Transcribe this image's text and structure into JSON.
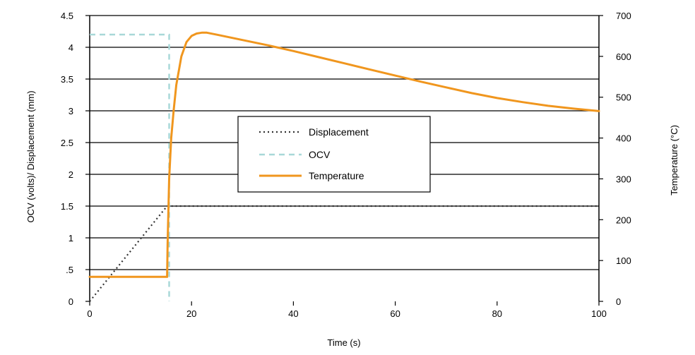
{
  "chart_data": {
    "type": "line",
    "xlabel": "Time (s)",
    "ylabel_left": "OCV (volts)/ Displacement (mm)",
    "ylabel_right": "Temperature (°C)",
    "xlim": [
      0,
      100
    ],
    "ylim_left": [
      0,
      4.5
    ],
    "ylim_right": [
      0,
      700
    ],
    "x_ticks": [
      0,
      20,
      40,
      60,
      80,
      100
    ],
    "x_tick_labels": [
      "0",
      "20",
      "40",
      "60",
      "80",
      "100"
    ],
    "y_left_ticks": [
      0,
      0.5,
      1,
      1.5,
      2,
      2.5,
      3,
      3.5,
      4,
      4.5
    ],
    "y_left_tick_labels": [
      "0",
      ".5",
      "1",
      "1.5",
      "2",
      "2.5",
      "3",
      "3.5",
      "4",
      "4.5"
    ],
    "y_right_ticks": [
      0,
      100,
      200,
      300,
      400,
      500,
      600,
      700
    ],
    "y_right_tick_labels": [
      "0",
      "100",
      "200",
      "300",
      "400",
      "500",
      "600",
      "700"
    ],
    "grid": true,
    "legend_position": "center",
    "series": [
      {
        "name": "Displacement",
        "axis": "left",
        "style": "dotted",
        "color": "#333333",
        "points": [
          [
            0,
            0
          ],
          [
            15.2,
            1.5
          ],
          [
            100,
            1.5
          ]
        ]
      },
      {
        "name": "OCV",
        "axis": "left",
        "style": "dashed",
        "color": "#a8d8d8",
        "points": [
          [
            0,
            4.2
          ],
          [
            15.6,
            4.2
          ],
          [
            15.6,
            0
          ]
        ]
      },
      {
        "name": "Temperature",
        "axis": "right",
        "style": "solid",
        "color": "#f0961e",
        "points": [
          [
            0,
            60
          ],
          [
            15.2,
            60
          ],
          [
            15.3,
            140
          ],
          [
            15.6,
            300
          ],
          [
            16,
            400
          ],
          [
            16.5,
            470
          ],
          [
            17,
            530
          ],
          [
            18,
            600
          ],
          [
            19,
            635
          ],
          [
            20,
            650
          ],
          [
            21,
            656
          ],
          [
            22,
            658
          ],
          [
            23,
            658
          ],
          [
            25,
            653
          ],
          [
            30,
            640
          ],
          [
            35,
            627
          ],
          [
            40,
            613
          ],
          [
            45,
            598
          ],
          [
            50,
            583
          ],
          [
            55,
            568
          ],
          [
            60,
            553
          ],
          [
            65,
            538
          ],
          [
            70,
            524
          ],
          [
            75,
            510
          ],
          [
            80,
            498
          ],
          [
            85,
            488
          ],
          [
            90,
            479
          ],
          [
            95,
            472
          ],
          [
            100,
            466
          ]
        ]
      }
    ]
  }
}
